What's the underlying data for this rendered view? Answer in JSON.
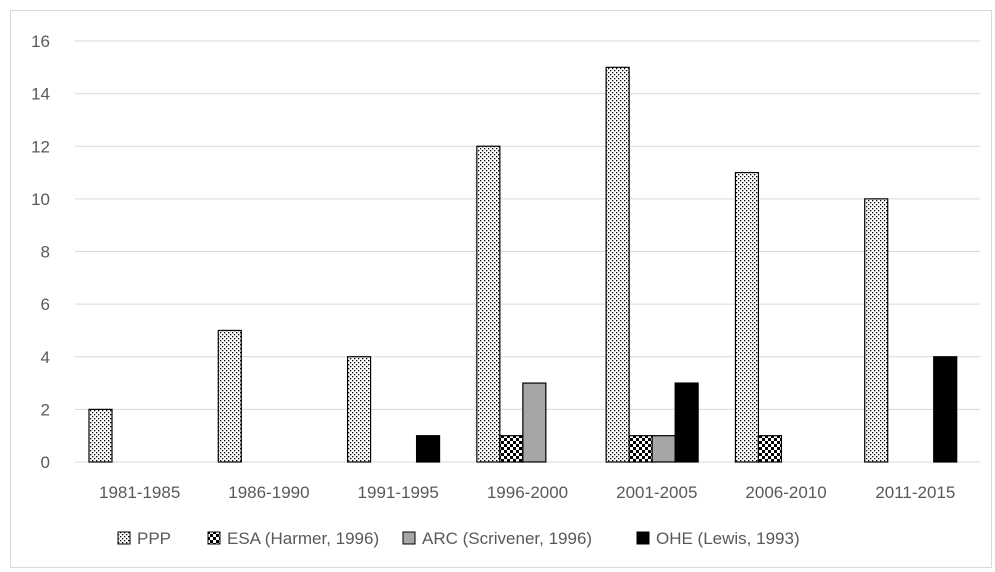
{
  "chart_data": {
    "type": "bar",
    "title": "",
    "xlabel": "",
    "ylabel": "",
    "categories": [
      "1981-1985",
      "1986-1990",
      "1991-1995",
      "1996-2000",
      "2001-2005",
      "2006-2010",
      "2011-2015"
    ],
    "series": [
      {
        "name": "PPP",
        "values": [
          2,
          5,
          4,
          12,
          15,
          11,
          10
        ],
        "fill": "dots",
        "color": "#000000"
      },
      {
        "name": "ESA (Harmer, 1996)",
        "values": [
          0,
          0,
          0,
          1,
          1,
          1,
          0
        ],
        "fill": "checker",
        "color": "#000000"
      },
      {
        "name": "ARC (Scrivener, 1996)",
        "values": [
          0,
          0,
          0,
          3,
          1,
          0,
          0
        ],
        "fill": "solid",
        "color": "#a6a6a6"
      },
      {
        "name": "OHE (Lewis, 1993)",
        "values": [
          0,
          0,
          1,
          0,
          3,
          0,
          4
        ],
        "fill": "solid",
        "color": "#000000"
      }
    ],
    "ylim": [
      0,
      16
    ],
    "yticks": [
      0,
      2,
      4,
      6,
      8,
      10,
      12,
      14,
      16
    ],
    "grid": true,
    "legend": "bottom",
    "colors": {
      "grid": "#d9d9d9",
      "text": "#595959",
      "axis": "#d9d9d9"
    }
  }
}
